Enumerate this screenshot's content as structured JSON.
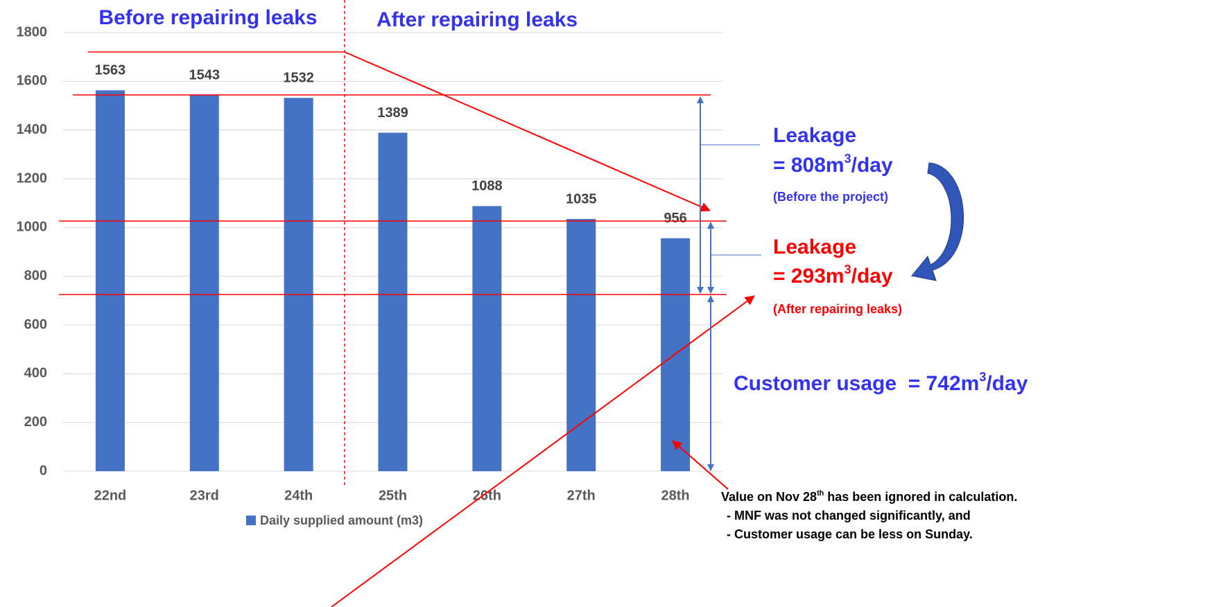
{
  "chart_data": {
    "type": "bar",
    "categories": [
      "22nd",
      "23rd",
      "24th",
      "25th",
      "26th",
      "27th",
      "28th"
    ],
    "series": [
      {
        "name": "Daily supplied amount (m3)",
        "color": "#4472c4",
        "values": [
          1563,
          1543,
          1532,
          1389,
          1088,
          1035,
          956
        ]
      }
    ],
    "ylim": [
      0,
      1800
    ],
    "yticks": [
      0,
      200,
      400,
      600,
      800,
      1000,
      1200,
      1400,
      1600,
      1800
    ],
    "grid": true,
    "legend": "bottom",
    "annotations": {
      "before": "Before repairing leaks",
      "after": "After repairing leaks",
      "leakage_before": {
        "label": "Leakage",
        "value": [
          "= 808m",
          "3",
          "/day"
        ],
        "note": "(Before the project)"
      },
      "leakage_after": {
        "label": "Leakage",
        "value": [
          "= 293m",
          "3",
          "/day"
        ],
        "note": "(After repairing leaks)"
      },
      "customer": [
        "Customer usage  = 742m",
        "3",
        "/day"
      ],
      "note": {
        "title": [
          "Value on Nov 28",
          "th",
          " has been ignored in calculation."
        ],
        "lines": [
          "- MNF was not changed significantly, and",
          "- Customer usage can be less on Sunday."
        ]
      }
    }
  }
}
